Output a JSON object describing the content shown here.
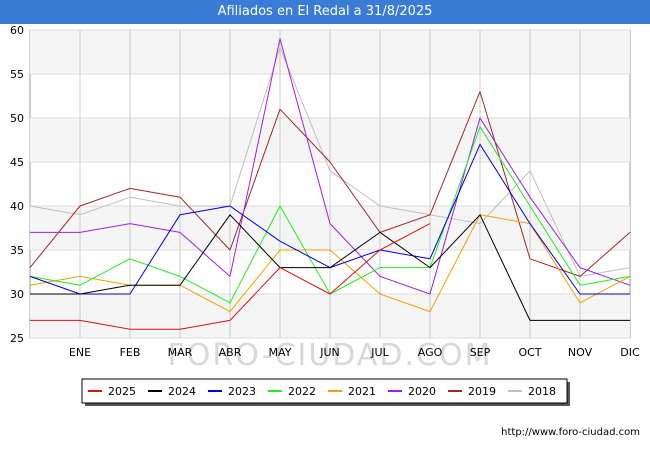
{
  "chart_data": {
    "type": "line",
    "title": "Afiliados en El Redal a 31/8/2025",
    "categories": [
      "",
      "ENE",
      "FEB",
      "MAR",
      "ABR",
      "MAY",
      "JUN",
      "JUL",
      "AGO",
      "SEP",
      "OCT",
      "NOV",
      "DIC"
    ],
    "ylim": [
      25,
      60
    ],
    "yticks": [
      25,
      30,
      35,
      40,
      45,
      50,
      55,
      60
    ],
    "grid": true,
    "legend_position": "bottom",
    "series": [
      {
        "name": "2025",
        "color": "#e01010",
        "values": [
          27,
          27,
          26,
          26,
          27,
          33,
          30,
          35,
          38,
          null,
          null,
          null,
          null
        ]
      },
      {
        "name": "2024",
        "color": "#000000",
        "values": [
          30,
          30,
          31,
          31,
          39,
          33,
          33,
          37,
          33,
          39,
          27,
          27,
          27
        ]
      },
      {
        "name": "2023",
        "color": "#0000dd",
        "values": [
          32,
          30,
          30,
          39,
          40,
          36,
          33,
          35,
          34,
          47,
          38,
          30,
          30
        ]
      },
      {
        "name": "2022",
        "color": "#22ee22",
        "values": [
          32,
          31,
          34,
          32,
          29,
          40,
          30,
          33,
          33,
          49,
          40,
          31,
          32
        ]
      },
      {
        "name": "2021",
        "color": "#f5a000",
        "values": [
          31,
          32,
          31,
          31,
          28,
          35,
          35,
          30,
          28,
          39,
          38,
          29,
          32
        ]
      },
      {
        "name": "2020",
        "color": "#a020e0",
        "values": [
          37,
          37,
          38,
          37,
          32,
          59,
          38,
          32,
          30,
          50,
          41,
          33,
          31
        ]
      },
      {
        "name": "2019",
        "color": "#a02828",
        "values": [
          33,
          40,
          42,
          41,
          35,
          51,
          45,
          37,
          39,
          53,
          34,
          32,
          37
        ]
      },
      {
        "name": "2018",
        "color": "#c0c0c0",
        "values": [
          40,
          39,
          41,
          40,
          40,
          58,
          44,
          40,
          39,
          38,
          44,
          32,
          33
        ]
      }
    ]
  },
  "watermark": "FORO-CIUDAD.COM",
  "source_url": "http://www.foro-ciudad.com"
}
